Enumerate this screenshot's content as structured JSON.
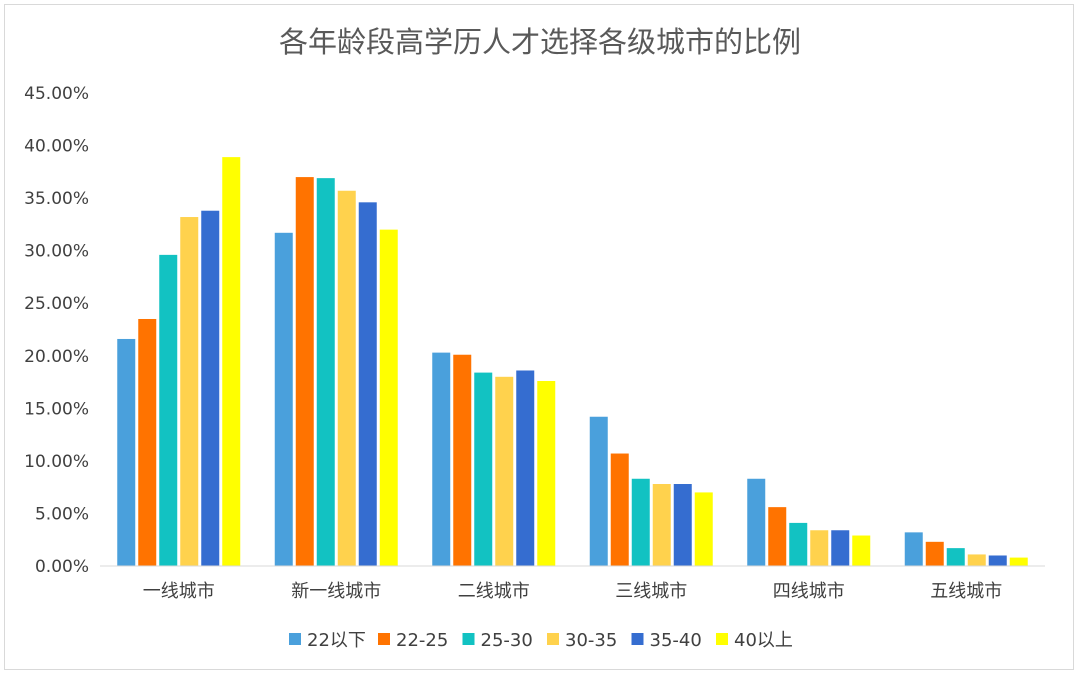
{
  "chart_data": {
    "type": "bar",
    "title": "各年龄段高学历人才选择各级城市的比例",
    "xlabel": "",
    "ylabel": "",
    "ylim": [
      0,
      0.45
    ],
    "y_tick_labels": [
      "0.00%",
      "5.00%",
      "10.00%",
      "15.00%",
      "20.00%",
      "25.00%",
      "30.00%",
      "35.00%",
      "40.00%",
      "45.00%"
    ],
    "categories": [
      "一线城市",
      "新一线城市",
      "二线城市",
      "三线城市",
      "四线城市",
      "五线城市"
    ],
    "legend_position": "bottom",
    "grid": false,
    "series": [
      {
        "name": "22以下",
        "color": "#4aa0dc",
        "values": [
          0.216,
          0.317,
          0.203,
          0.142,
          0.083,
          0.032
        ]
      },
      {
        "name": "22-25",
        "color": "#ff7300",
        "values": [
          0.235,
          0.37,
          0.201,
          0.107,
          0.056,
          0.023
        ]
      },
      {
        "name": "25-30",
        "color": "#12c2c2",
        "values": [
          0.296,
          0.369,
          0.184,
          0.083,
          0.041,
          0.017
        ]
      },
      {
        "name": "30-35",
        "color": "#ffd24d",
        "values": [
          0.332,
          0.357,
          0.18,
          0.078,
          0.034,
          0.011
        ]
      },
      {
        "name": "35-40",
        "color": "#356dd0",
        "values": [
          0.338,
          0.346,
          0.186,
          0.078,
          0.034,
          0.01
        ]
      },
      {
        "name": "40以上",
        "color": "#ffff00",
        "values": [
          0.389,
          0.32,
          0.176,
          0.07,
          0.029,
          0.008
        ]
      }
    ]
  }
}
